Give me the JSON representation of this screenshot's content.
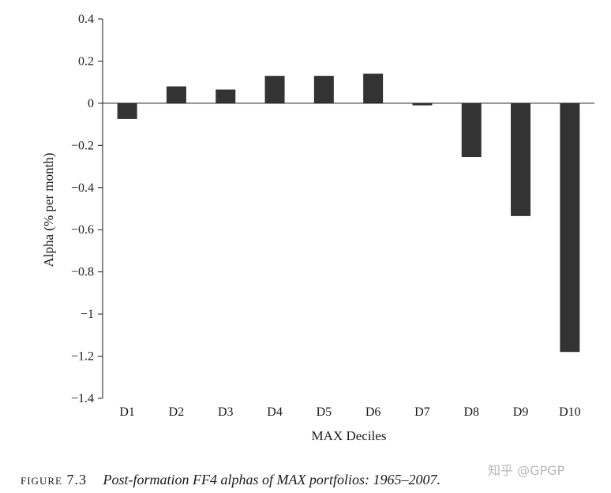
{
  "chart_data": {
    "type": "bar",
    "categories": [
      "D1",
      "D2",
      "D3",
      "D4",
      "D5",
      "D6",
      "D7",
      "D8",
      "D9",
      "D10"
    ],
    "values": [
      -0.075,
      0.08,
      0.065,
      0.13,
      0.13,
      0.14,
      -0.01,
      -0.255,
      -0.535,
      -1.18
    ],
    "title": "",
    "xlabel": "MAX Deciles",
    "ylabel": "Alpha (% per month)",
    "ylim": [
      -1.4,
      0.4
    ],
    "yticks": [
      0.4,
      0.2,
      0,
      -0.2,
      -0.4,
      -0.6,
      -0.8,
      -1,
      -1.2,
      -1.4
    ],
    "ytick_labels": [
      "0.4",
      "0.2",
      "0",
      "−0.2",
      "−0.4",
      "−0.6",
      "−0.8",
      "−1",
      "−1.2",
      "−1.4"
    ],
    "grid": false,
    "bar_color": "#333333"
  },
  "caption": {
    "label": "figure 7.3",
    "text": "Post-formation FF4 alphas of MAX portfolios: 1965–2007."
  },
  "watermark": "知乎 @GPGP"
}
